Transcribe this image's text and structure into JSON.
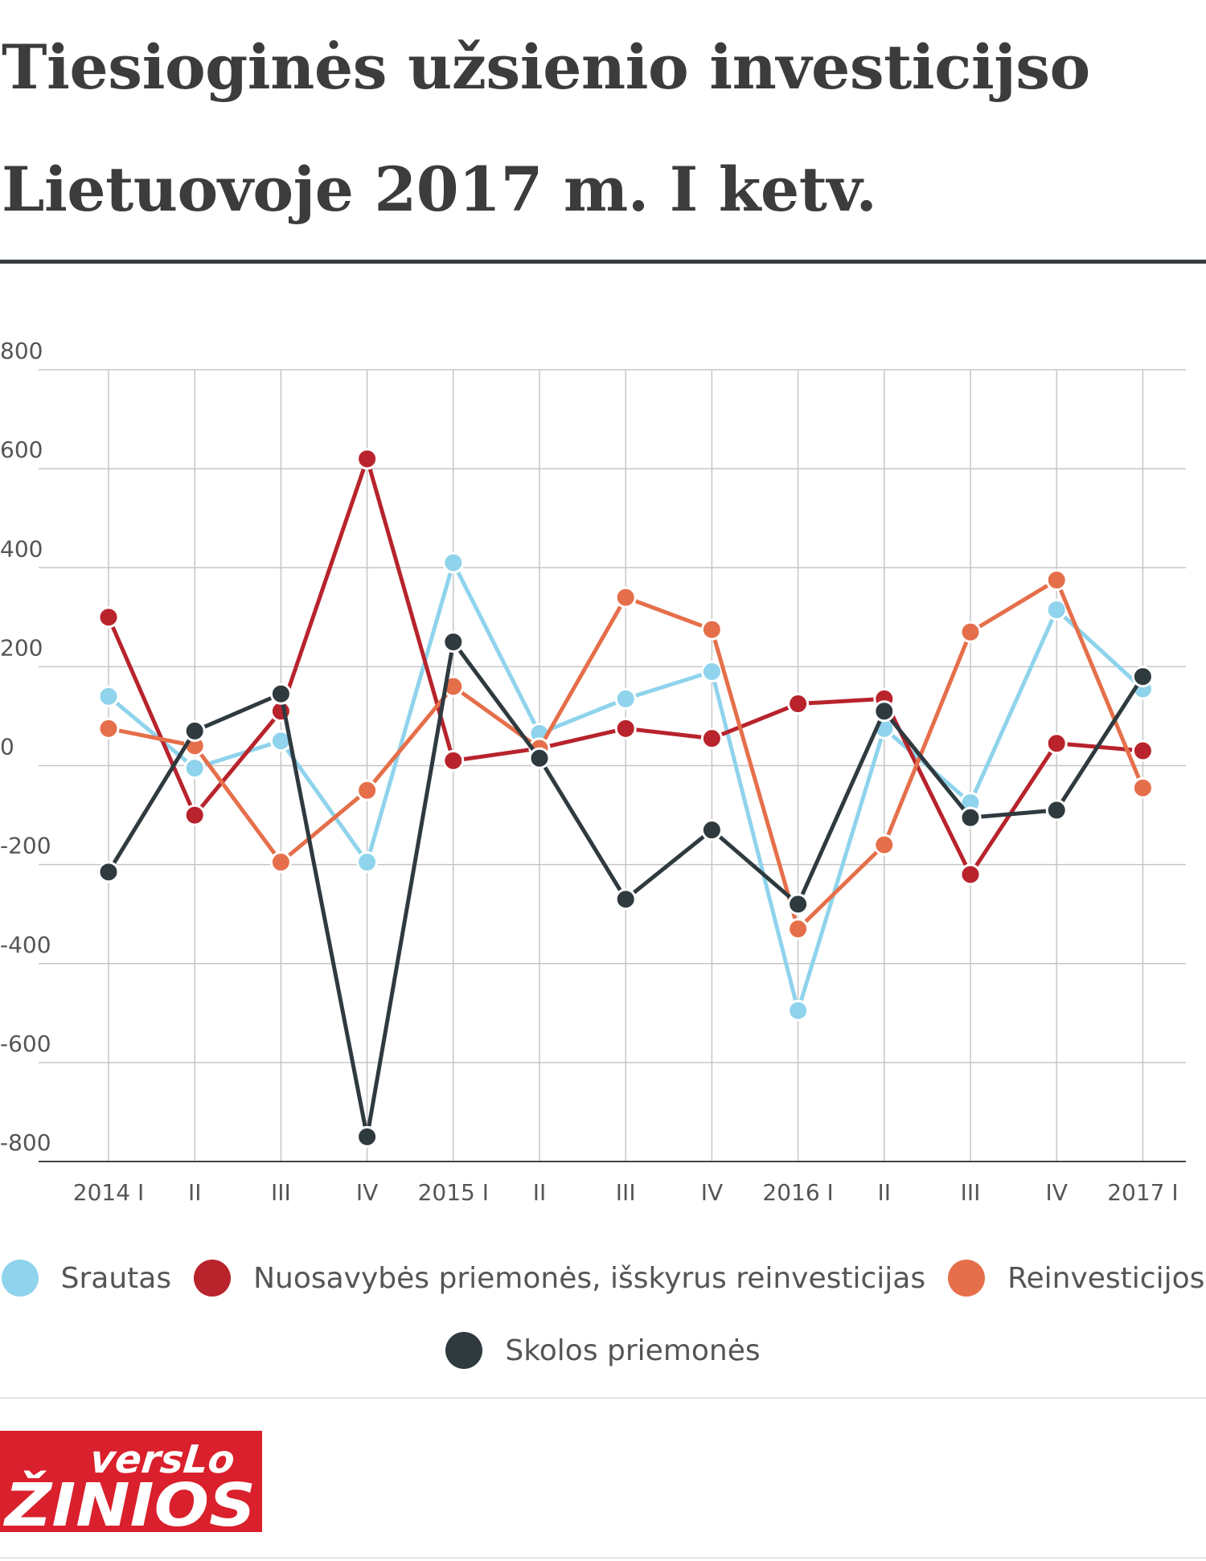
{
  "title": "Tiesioginės užsienio investicijso Lietuovoje 2017 m. I ketv.",
  "logo": {
    "line1": "versLo",
    "line2": "ŽINIOS",
    "color": "#d9202c"
  },
  "chart_data": {
    "type": "line",
    "categories": [
      "2014 I",
      "II",
      "III",
      "IV",
      "2015 I",
      "II",
      "III",
      "IV",
      "2016 I",
      "II",
      "III",
      "IV",
      "2017 I"
    ],
    "ylim": [
      -800,
      800
    ],
    "yticks": [
      800,
      600,
      400,
      200,
      0,
      -200,
      -400,
      -600,
      -800
    ],
    "grid": true,
    "legend_position": "bottom",
    "series": [
      {
        "name": "Srautas",
        "color": "#8fd3ec",
        "values": [
          140,
          -5,
          50,
          -195,
          410,
          65,
          135,
          190,
          -495,
          75,
          -75,
          315,
          155
        ]
      },
      {
        "name": "Nuosavybės priemonės, išskyrus reinvesticijas",
        "color": "#b8232c",
        "values": [
          300,
          -100,
          110,
          620,
          10,
          35,
          75,
          55,
          125,
          135,
          -220,
          45,
          30
        ]
      },
      {
        "name": "Reinvesticijos",
        "color": "#e56f4a",
        "values": [
          75,
          40,
          -195,
          -50,
          160,
          35,
          340,
          275,
          -330,
          -160,
          270,
          375,
          -45
        ]
      },
      {
        "name": "Skolos priemonės",
        "color": "#2f3a3f",
        "values": [
          -215,
          70,
          145,
          -750,
          250,
          15,
          -270,
          -130,
          -280,
          110,
          -105,
          -90,
          180
        ]
      }
    ]
  }
}
